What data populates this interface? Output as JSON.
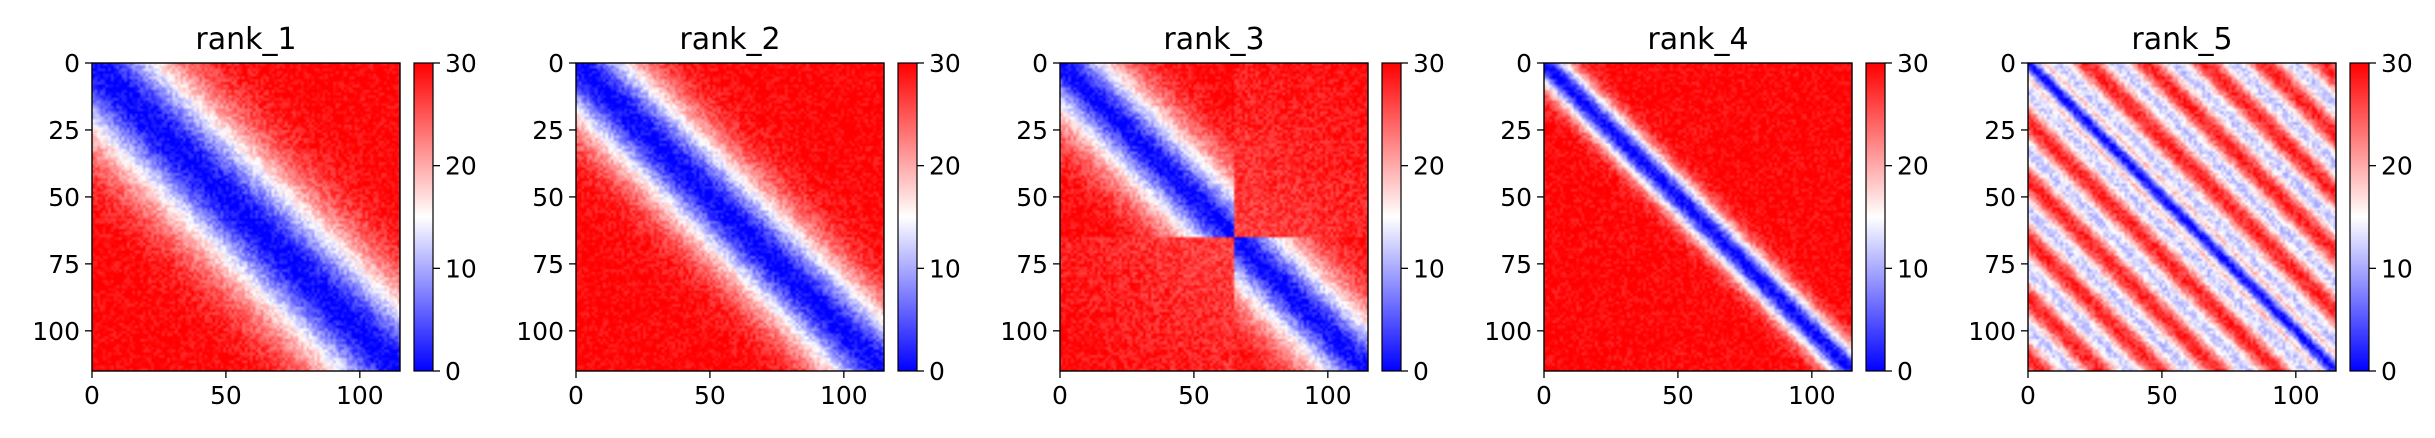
{
  "chart_data": [
    {
      "type": "heatmap",
      "title": "rank_1",
      "size": 115,
      "x_ticks": [
        0,
        50,
        100
      ],
      "y_ticks": [
        0,
        25,
        50,
        75,
        100
      ],
      "color_range": [
        0,
        30
      ],
      "colorbar_ticks": [
        0,
        10,
        20,
        30
      ],
      "colormap": [
        "#0000ff",
        "#ffffff",
        "#ff0000"
      ],
      "pattern": {
        "kind": "smooth-diagonal",
        "band_width": 28
      }
    },
    {
      "type": "heatmap",
      "title": "rank_2",
      "size": 115,
      "x_ticks": [
        0,
        50,
        100
      ],
      "y_ticks": [
        0,
        25,
        50,
        75,
        100
      ],
      "color_range": [
        0,
        30
      ],
      "colorbar_ticks": [
        0,
        10,
        20,
        30
      ],
      "colormap": [
        "#0000ff",
        "#ffffff",
        "#ff0000"
      ],
      "pattern": {
        "kind": "smooth-diagonal",
        "band_width": 22
      }
    },
    {
      "type": "heatmap",
      "title": "rank_3",
      "size": 115,
      "x_ticks": [
        0,
        50,
        100
      ],
      "y_ticks": [
        0,
        25,
        50,
        75,
        100
      ],
      "color_range": [
        0,
        30
      ],
      "colorbar_ticks": [
        0,
        10,
        20,
        30
      ],
      "colormap": [
        "#0000ff",
        "#ffffff",
        "#ff0000"
      ],
      "pattern": {
        "kind": "two-domain",
        "boundary": 65,
        "band_width": 20
      }
    },
    {
      "type": "heatmap",
      "title": "rank_4",
      "size": 115,
      "x_ticks": [
        0,
        50,
        100
      ],
      "y_ticks": [
        0,
        25,
        50,
        75,
        100
      ],
      "color_range": [
        0,
        30
      ],
      "colorbar_ticks": [
        0,
        10,
        20,
        30
      ],
      "colormap": [
        "#0000ff",
        "#ffffff",
        "#ff0000"
      ],
      "pattern": {
        "kind": "smooth-diagonal",
        "band_width": 9
      }
    },
    {
      "type": "heatmap",
      "title": "rank_5",
      "size": 115,
      "x_ticks": [
        0,
        50,
        100
      ],
      "y_ticks": [
        0,
        25,
        50,
        75,
        100
      ],
      "color_range": [
        0,
        30
      ],
      "colorbar_ticks": [
        0,
        10,
        20,
        30
      ],
      "colormap": [
        "#0000ff",
        "#ffffff",
        "#ff0000"
      ],
      "pattern": {
        "kind": "periodic-diagonal",
        "period": 22,
        "band_width": 6
      }
    }
  ]
}
